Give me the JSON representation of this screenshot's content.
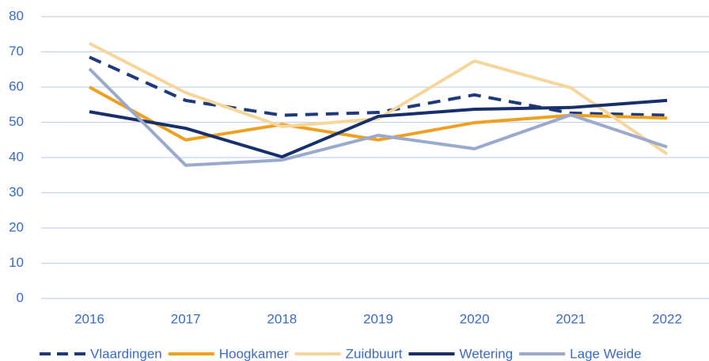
{
  "chart_data": {
    "type": "line",
    "categories": [
      "2016",
      "2017",
      "2018",
      "2019",
      "2020",
      "2021",
      "2022"
    ],
    "series": [
      {
        "name": "Vlaardingen",
        "color": "#1f3a7a",
        "dashed": true,
        "values": [
          68.5,
          56.2,
          52,
          52.8,
          57.8,
          52.6,
          52
        ]
      },
      {
        "name": "Hoogkamer",
        "color": "#f0a020",
        "values": [
          60,
          45,
          49.4,
          45,
          49.9,
          52,
          51.2
        ]
      },
      {
        "name": "Zuidbuurt",
        "color": "#f6d69a",
        "values": [
          72.4,
          58.4,
          48.8,
          51,
          67.4,
          59.8,
          41
        ]
      },
      {
        "name": "Wetering",
        "color": "#17306b",
        "values": [
          53,
          48.3,
          40.2,
          51.7,
          53.7,
          54.2,
          56.2
        ]
      },
      {
        "name": "Lage Weide",
        "color": "#9aa9cc",
        "values": [
          65.2,
          37.8,
          39.3,
          46.3,
          42.5,
          52.1,
          43
        ]
      }
    ],
    "ylim": [
      0,
      80
    ],
    "yticks": [
      0,
      10,
      20,
      30,
      40,
      50,
      60,
      70,
      80
    ],
    "grid": true,
    "legend": "bottom"
  }
}
